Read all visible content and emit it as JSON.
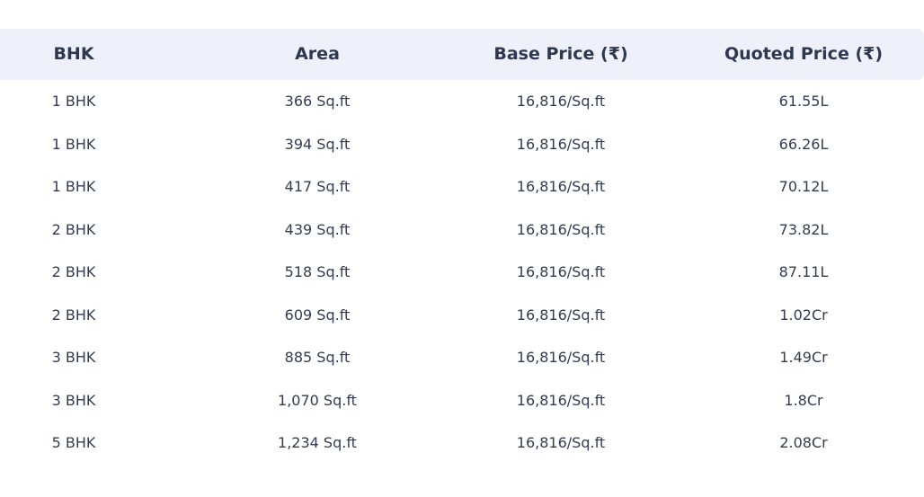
{
  "table": {
    "headers": [
      "BHK",
      "Area",
      "Base Price (₹)",
      "Quoted Price (₹)"
    ],
    "rows": [
      [
        "1 BHK",
        "366 Sq.ft",
        "16,816/Sq.ft",
        "61.55L"
      ],
      [
        "1 BHK",
        "394 Sq.ft",
        "16,816/Sq.ft",
        "66.26L"
      ],
      [
        "1 BHK",
        "417 Sq.ft",
        "16,816/Sq.ft",
        "70.12L"
      ],
      [
        "2 BHK",
        "439 Sq.ft",
        "16,816/Sq.ft",
        "73.82L"
      ],
      [
        "2 BHK",
        "518 Sq.ft",
        "16,816/Sq.ft",
        "87.11L"
      ],
      [
        "2 BHK",
        "609 Sq.ft",
        "16,816/Sq.ft",
        "1.02Cr"
      ],
      [
        "3 BHK",
        "885 Sq.ft",
        "16,816/Sq.ft",
        "1.49Cr"
      ],
      [
        "3 BHK",
        "1,070 Sq.ft",
        "16,816/Sq.ft",
        "1.8Cr"
      ],
      [
        "5 BHK",
        "1,234 Sq.ft",
        "16,816/Sq.ft",
        "2.08Cr"
      ]
    ]
  },
  "colors": {
    "header_background": "#eef1f9",
    "header_text": "#2f3851",
    "body_text": "#353c52",
    "page_background": "#ffffff"
  }
}
